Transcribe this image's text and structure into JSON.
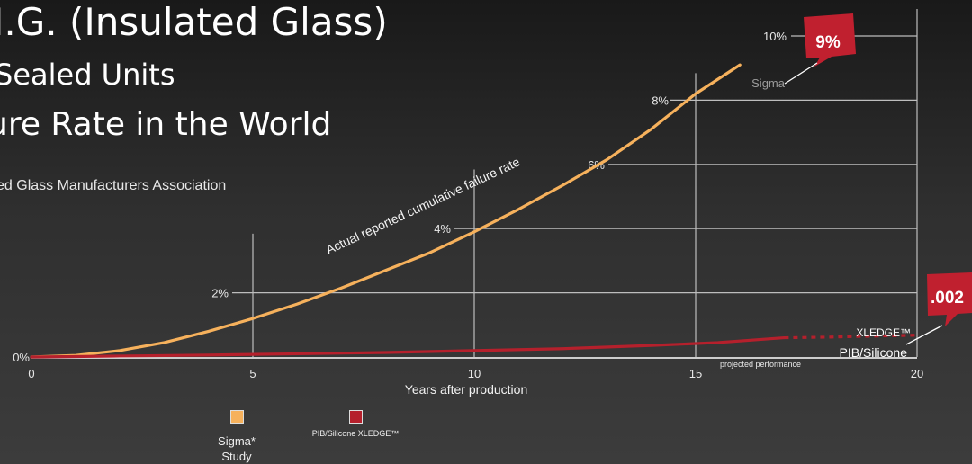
{
  "header": {
    "title_line1": "I.G. (Insulated Glass)",
    "title_line2": "Sealed Units",
    "title_line3": "ure Rate in the World",
    "source": "ed Glass Manufacturers Association"
  },
  "colors": {
    "sigma": "#f6b15c",
    "xledge": "#b5202c",
    "grid": "#bdbdbd",
    "callout": "#c0202f"
  },
  "chart_data": {
    "type": "line",
    "xlabel": "Years after production",
    "ylabel": "",
    "xlim": [
      0,
      20
    ],
    "ylim": [
      0,
      10
    ],
    "x_ticks": [
      "0",
      "5",
      "10",
      "15",
      "20"
    ],
    "y_ticks": [
      "0%",
      "2%",
      "4%",
      "6%",
      "8%",
      "10%"
    ],
    "grid": true,
    "curve_annotation": "Actual reported cumulative failure rate",
    "projection_annotation": "projected performance",
    "series": [
      {
        "name": "Sigma",
        "x": [
          0,
          1,
          2,
          3,
          4,
          5,
          6,
          7,
          8,
          9,
          10,
          11,
          12,
          13,
          14,
          15,
          16
        ],
        "y": [
          0,
          0.05,
          0.2,
          0.45,
          0.8,
          1.2,
          1.65,
          2.15,
          2.7,
          3.25,
          3.9,
          4.6,
          5.35,
          6.15,
          7.1,
          8.2,
          9.1
        ]
      },
      {
        "name": "PIB/Silicone",
        "x": [
          0,
          2,
          4,
          6,
          8,
          10,
          12,
          14,
          15.5,
          17
        ],
        "y": [
          0,
          0.03,
          0.06,
          0.1,
          0.14,
          0.2,
          0.26,
          0.36,
          0.45,
          0.6
        ]
      },
      {
        "name": "XLEDGE™ projected",
        "x": [
          17,
          18,
          19,
          20
        ],
        "y": [
          0.6,
          0.62,
          0.65,
          0.68
        ]
      }
    ],
    "callouts": [
      {
        "value": "9%",
        "label": "Sigma"
      },
      {
        "value": ".002",
        "label_top": "XLEDGE™",
        "label_bottom": "PIB/Silicone"
      }
    ],
    "legend": [
      {
        "label": "Sigma* Study",
        "color": "#f6b15c"
      },
      {
        "label": "PIB/Silicone XLEDGE™",
        "color": "#b5202c"
      }
    ]
  }
}
